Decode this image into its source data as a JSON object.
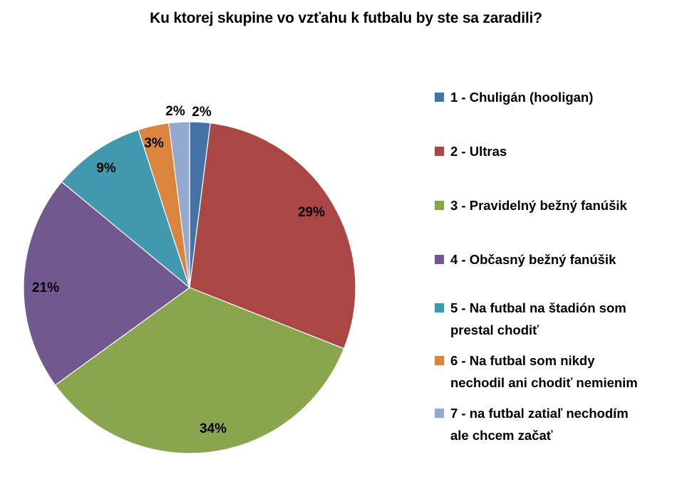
{
  "chart_data": {
    "type": "pie",
    "title": "Ku ktorej skupine vo vzťahu k futbalu by ste sa zaradili?",
    "categories": [
      "1 - Chuligán (hooligan)",
      "2 - Ultras",
      "3 - Pravidelný bežný fanúšik",
      "4 - Občasný bežný fanúšik",
      "5 - Na futbal na štadión som prestal chodiť",
      "6 - Na futbal som nikdy nechodil ani chodiť nemienim",
      "7 - na futbal zatiaľ nechodím ale chcem začať"
    ],
    "values": [
      2,
      29,
      34,
      21,
      9,
      3,
      2
    ],
    "data_labels": [
      "2%",
      "29%",
      "34%",
      "21%",
      "9%",
      "3%",
      "2%"
    ],
    "colors": [
      "#4572A7",
      "#AA4643",
      "#89A54E",
      "#71588F",
      "#4198AF",
      "#DB843D",
      "#93A9CF"
    ],
    "legend_lines": [
      [
        "1 - Chuligán (hooligan)"
      ],
      [
        "2 - Ultras"
      ],
      [
        "3 - Pravidelný bežný fanúšik"
      ],
      [
        "4 - Občasný bežný fanúšik"
      ],
      [
        "5 - Na futbal na štadión som",
        "prestal chodiť"
      ],
      [
        "6 - Na futbal som nikdy",
        "nechodil ani chodiť nemienim"
      ],
      [
        "7 - na futbal zatiaľ nechodím",
        "ale chcem začať"
      ]
    ],
    "legend_position": "right",
    "start_angle": "12 o'clock",
    "direction": "clockwise"
  }
}
